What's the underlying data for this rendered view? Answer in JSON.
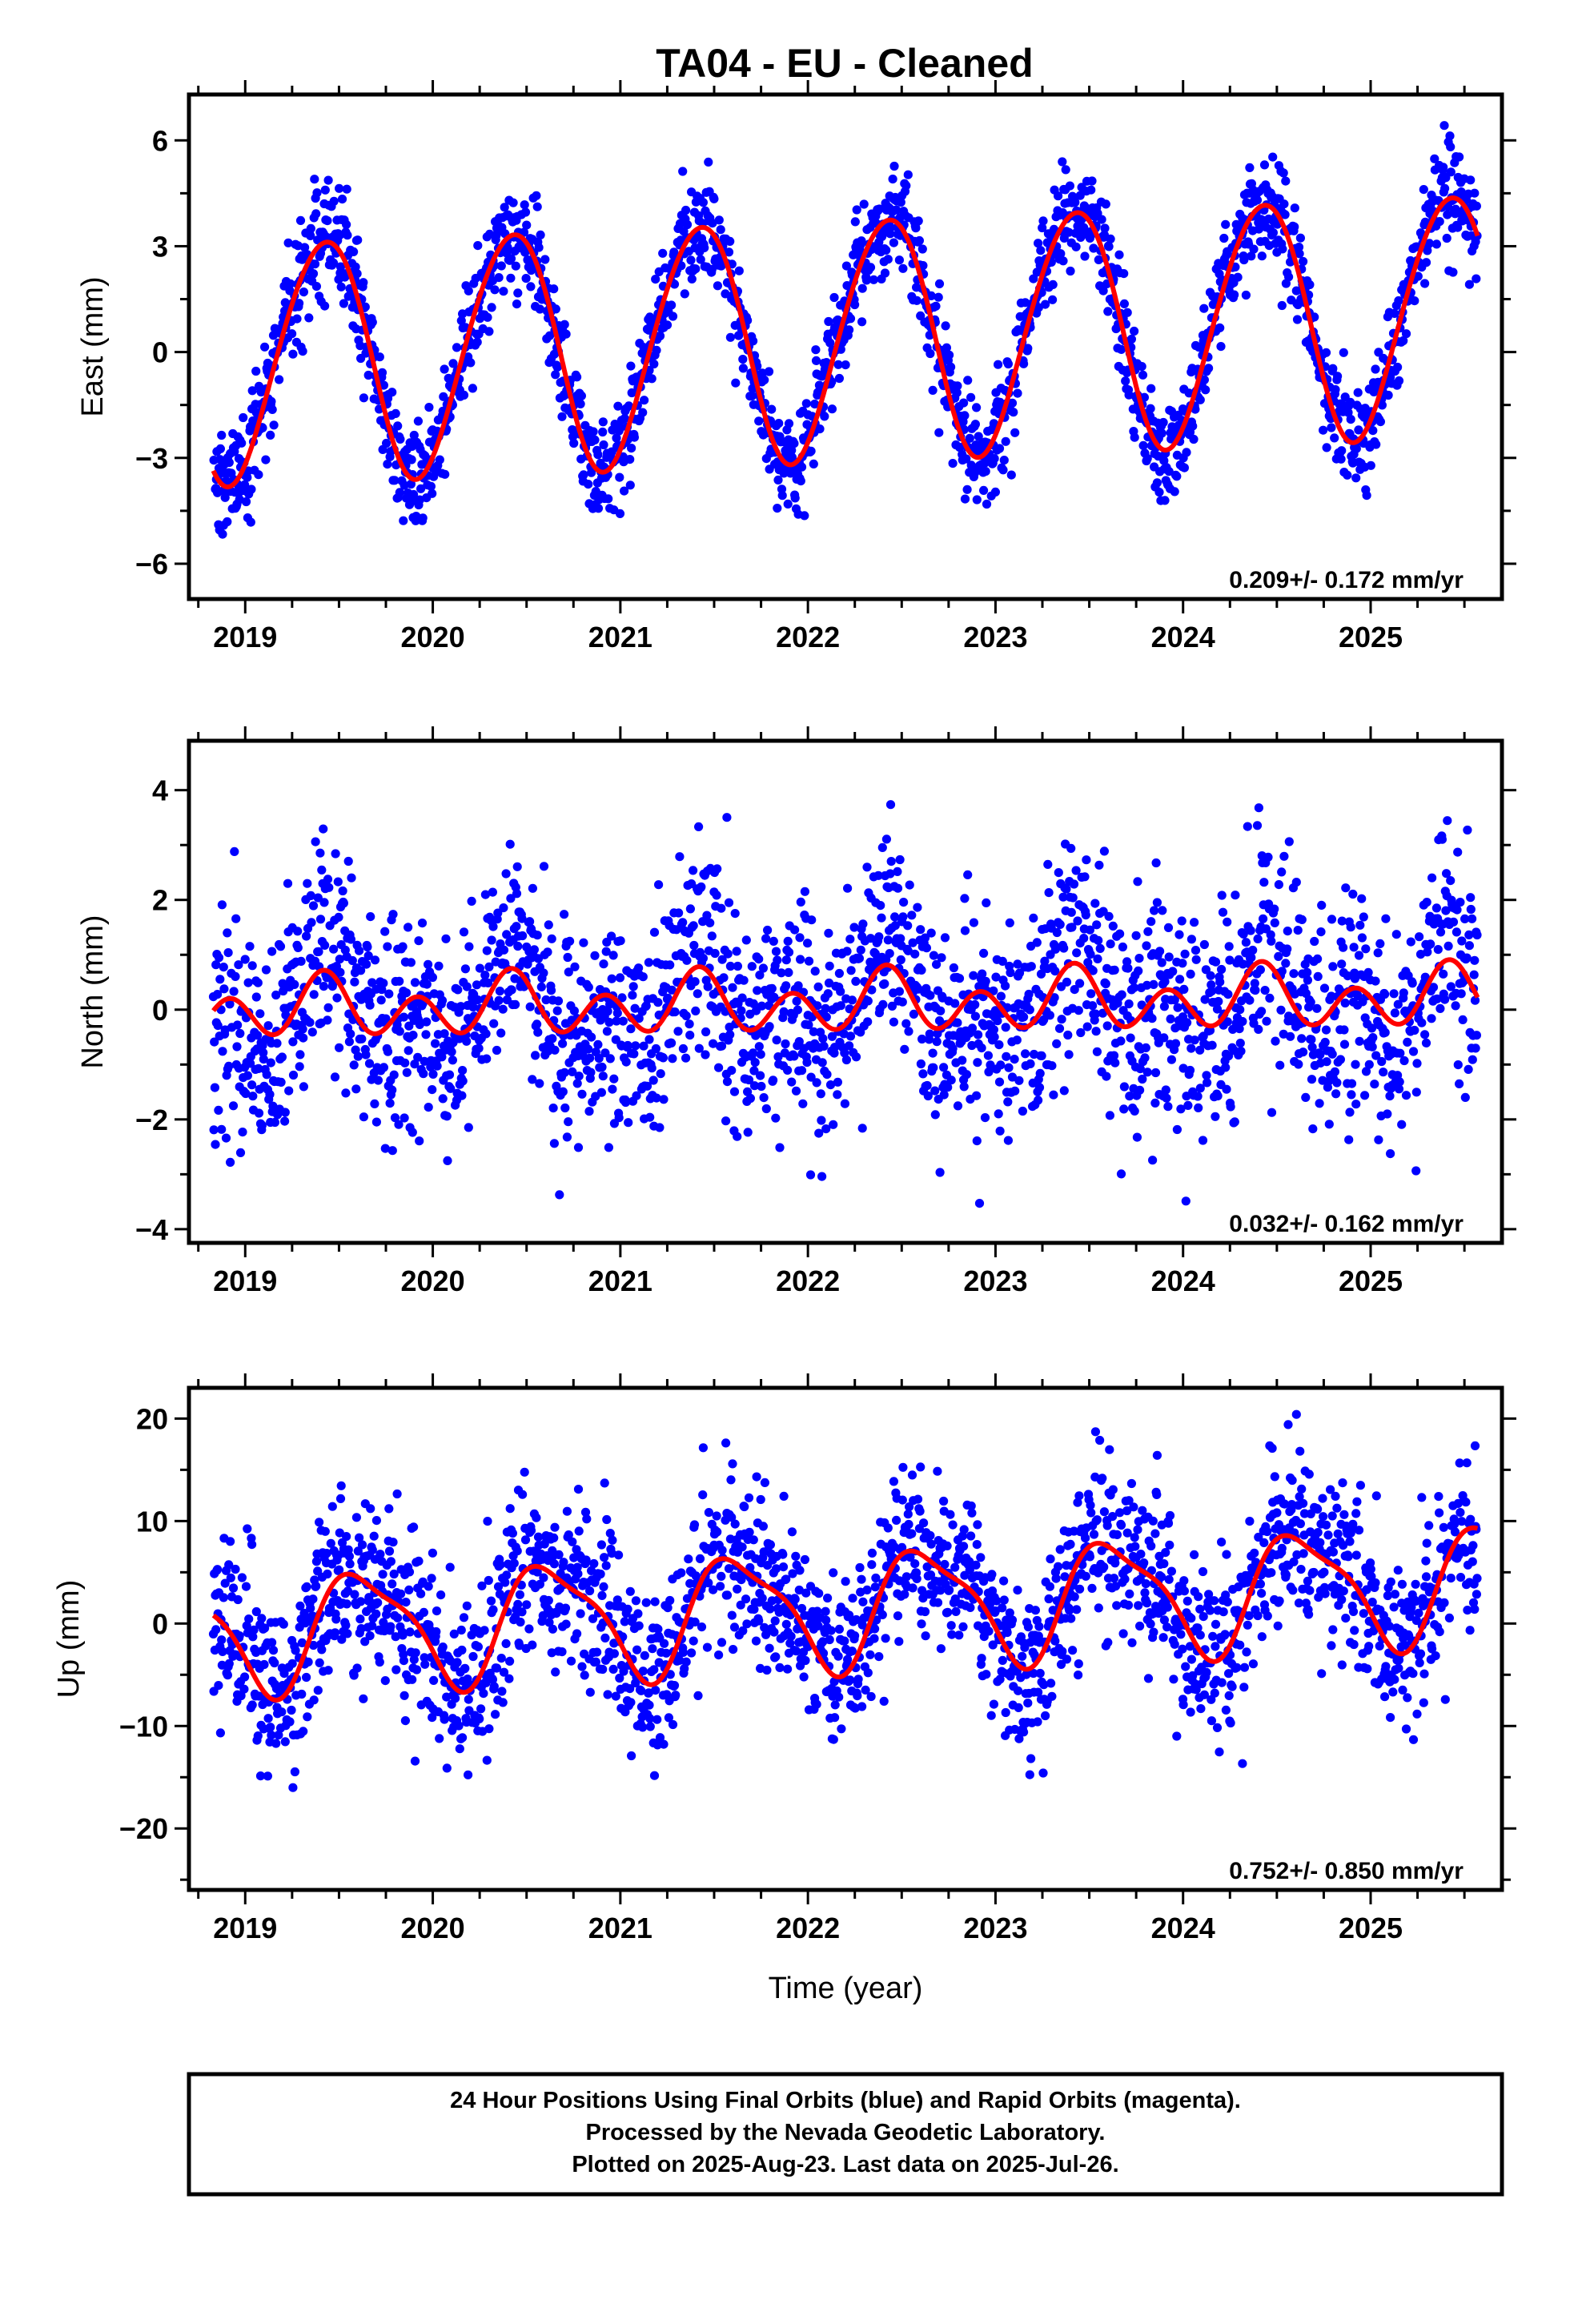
{
  "title": "TA04  - EU - Cleaned",
  "colors": {
    "points": "#0000ff",
    "fit": "#ff0000",
    "frame": "#000000"
  },
  "xaxis_label": "Time (year)",
  "footer": {
    "line1": "24 Hour Positions Using Final Orbits (blue) and Rapid Orbits (magenta).",
    "line2": "Processed by the Nevada Geodetic Laboratory.",
    "line3": "Plotted on 2025-Aug-23. Last data on 2025-Jul-26."
  },
  "chart_data": [
    {
      "type": "scatter",
      "component": "east",
      "ylabel": "East (mm)",
      "xlim": [
        2018.7,
        2025.7
      ],
      "ylim": [
        -7,
        7.3
      ],
      "xticks": [
        2019,
        2020,
        2021,
        2022,
        2023,
        2024,
        2025
      ],
      "yticks": [
        -6,
        -3,
        0,
        3,
        6
      ],
      "rate_text": "0.209+/- 0.172 mm/yr",
      "data_start": 2018.83,
      "data_end": 2025.57,
      "fit": {
        "offset": -0.3,
        "rate": 0.209,
        "annual_amp": 3.4,
        "annual_peak": 2019.42,
        "semi_amp": 0.2,
        "semi_peak": 2019.1
      },
      "noise_sd": 0.75,
      "series": [
        {
          "name": "Final Orbits (blue)",
          "kind": "points"
        },
        {
          "name": "",
          "kind": "fit"
        }
      ]
    },
    {
      "type": "scatter",
      "component": "north",
      "ylabel": "North (mm)",
      "xlim": [
        2018.7,
        2025.7
      ],
      "ylim": [
        -4.25,
        4.9
      ],
      "xticks": [
        2019,
        2020,
        2021,
        2022,
        2023,
        2024,
        2025
      ],
      "yticks": [
        -4,
        -2,
        0,
        2,
        4
      ],
      "rate_text": "0.032+/- 0.162 mm/yr",
      "data_start": 2018.83,
      "data_end": 2025.57,
      "fit": {
        "offset": 0.0,
        "rate": 0.032,
        "annual_amp": 0.25,
        "annual_peak": 2019.42,
        "semi_amp": 0.45,
        "semi_peak": 2019.42
      },
      "noise_sd": 1.0,
      "series": [
        {
          "name": "Final Orbits (blue)",
          "kind": "points"
        },
        {
          "name": "",
          "kind": "fit"
        }
      ]
    },
    {
      "type": "scatter",
      "component": "up",
      "ylabel": "Up (mm)",
      "xlim": [
        2018.7,
        2025.7
      ],
      "ylim": [
        -26,
        23
      ],
      "xticks": [
        2019,
        2020,
        2021,
        2022,
        2023,
        2024,
        2025
      ],
      "yticks": [
        -20,
        -10,
        0,
        10,
        20
      ],
      "rate_text": "0.752+/- 0.850 mm/yr",
      "data_start": 2018.83,
      "data_end": 2025.57,
      "fit": {
        "offset": -1.0,
        "rate": 0.752,
        "annual_amp": 5.5,
        "annual_peak": 2019.63,
        "semi_amp": 1.5,
        "semi_peak": 2019.45
      },
      "noise_sd": 4.2,
      "series": [
        {
          "name": "Final Orbits (blue)",
          "kind": "points"
        },
        {
          "name": "",
          "kind": "fit"
        }
      ]
    }
  ]
}
